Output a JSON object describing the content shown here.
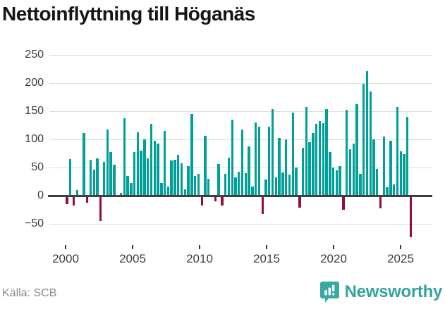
{
  "title": "Nettoinflyttning till Höganäs",
  "source": "Källa: SCB",
  "brand": {
    "name": "Newsworthy",
    "icon": "bar-chart-speech-bubble"
  },
  "colors": {
    "positive_bar": "#00a099",
    "negative_bar": "#8e1043",
    "grid": "#dcdcdc",
    "zero_line": "#3f3f3f",
    "axis_text": "#3c3c3c",
    "title_text": "#161616",
    "source_text": "#8a8a8a",
    "brand_teal": "#35a39c"
  },
  "chart_data": {
    "type": "bar",
    "title": "Nettoinflyttning till Höganäs",
    "frequency": "quarterly",
    "start_period": "2000Q1",
    "end_period": "2025Q3",
    "xlabel": "",
    "ylabel": "",
    "ylim": [
      -90,
      262
    ],
    "grid": "horizontal",
    "y_ticks": [
      250,
      200,
      150,
      100,
      50,
      0,
      -50
    ],
    "x_ticks": [
      2000,
      2005,
      2010,
      2015,
      2020,
      2025
    ],
    "values": [
      -15,
      65,
      -17,
      10,
      -3,
      111,
      -13,
      64,
      46,
      66,
      -45,
      60,
      117,
      77,
      55,
      0,
      5,
      137,
      35,
      23,
      77,
      112,
      80,
      100,
      66,
      127,
      98,
      92,
      22,
      115,
      16,
      62,
      64,
      72,
      58,
      11,
      52,
      145,
      35,
      39,
      -18,
      106,
      30,
      0,
      -10,
      56,
      -18,
      39,
      68,
      135,
      33,
      43,
      118,
      40,
      87,
      16,
      130,
      123,
      -32,
      29,
      123,
      154,
      33,
      102,
      41,
      100,
      37,
      148,
      50,
      -21,
      85,
      158,
      95,
      111,
      127,
      133,
      129,
      154,
      77,
      50,
      45,
      52,
      -25,
      152,
      83,
      92,
      163,
      39,
      199,
      221,
      185,
      100,
      48,
      -23,
      105,
      15,
      98,
      20,
      157,
      79,
      74,
      140,
      -74
    ]
  }
}
